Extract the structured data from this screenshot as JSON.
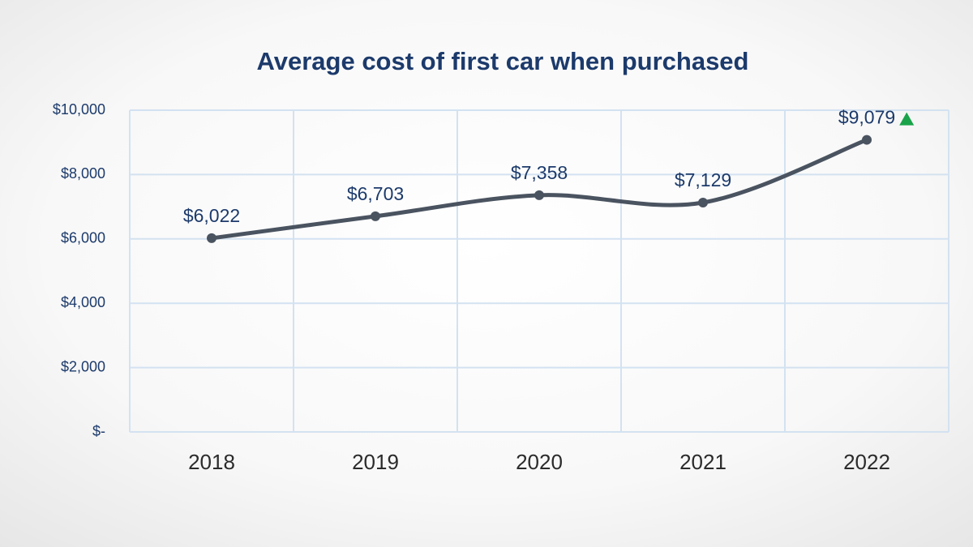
{
  "chart_data": {
    "type": "line",
    "title": "Average cost of first car when purchased",
    "categories": [
      "2018",
      "2019",
      "2020",
      "2021",
      "2022"
    ],
    "values": [
      6022,
      6703,
      7358,
      7129,
      9079
    ],
    "value_labels": [
      "$6,022",
      "$6,703",
      "$7,358",
      "$7,129",
      "$9,079"
    ],
    "color": "#4a5360",
    "ylim": [
      0,
      10000
    ],
    "yticks": [
      {
        "value": 0,
        "label": "$-"
      },
      {
        "value": 2000,
        "label": "$2,000"
      },
      {
        "value": 4000,
        "label": "$4,000"
      },
      {
        "value": 6000,
        "label": "$6,000"
      },
      {
        "value": 8000,
        "label": "$8,000"
      },
      {
        "value": 10000,
        "label": "$10,000"
      }
    ],
    "grid": true,
    "smooth": true
  }
}
